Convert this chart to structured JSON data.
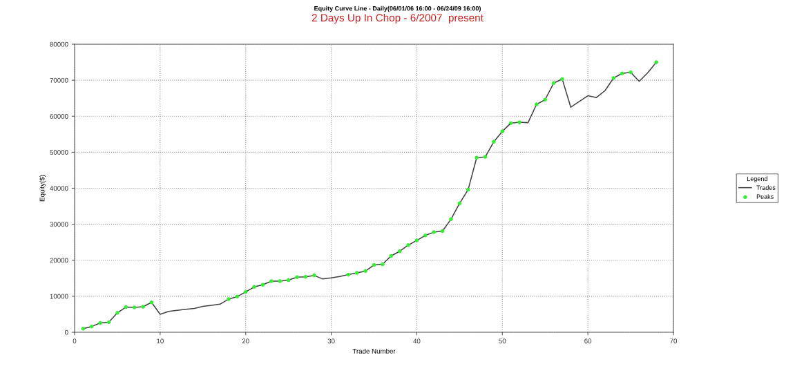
{
  "chart_data": {
    "type": "line",
    "title": "Equity Curve Line - Daily(06/01/06 16:00 - 06/24/09 16:00)",
    "subtitle": "2 Days Up In Chop - 6/2007  present",
    "xlabel": "Trade Number",
    "ylabel": "Equity($)",
    "legend_title": "Legend",
    "x": [
      1,
      2,
      3,
      4,
      5,
      6,
      7,
      8,
      9,
      10,
      11,
      12,
      13,
      14,
      15,
      16,
      17,
      18,
      19,
      20,
      21,
      22,
      23,
      24,
      25,
      26,
      27,
      28,
      29,
      30,
      31,
      32,
      33,
      34,
      35,
      36,
      37,
      38,
      39,
      40,
      41,
      42,
      43,
      44,
      45,
      46,
      47,
      48,
      49,
      50,
      51,
      52,
      53,
      54,
      55,
      56,
      57,
      58,
      59,
      60,
      61,
      62,
      63,
      64,
      65,
      66,
      67,
      68
    ],
    "series": [
      {
        "name": "Trades",
        "color": "#404040",
        "marker": "none",
        "line_style": "solid",
        "values": [
          1000,
          1600,
          2600,
          2800,
          5400,
          7000,
          6900,
          7100,
          8300,
          5000,
          5800,
          6100,
          6400,
          6600,
          7200,
          7500,
          7800,
          9200,
          9900,
          11200,
          12600,
          13200,
          14200,
          14200,
          14500,
          15300,
          15400,
          15800,
          14800,
          15100,
          15500,
          16000,
          16500,
          17000,
          18700,
          18900,
          21200,
          22500,
          24200,
          25500,
          26900,
          27800,
          28100,
          31400,
          35800,
          39600,
          48500,
          48700,
          52900,
          55800,
          58100,
          58300,
          58200,
          63300,
          64600,
          69200,
          70300,
          62500,
          64100,
          65700,
          65200,
          67100,
          70600,
          71900,
          72200,
          69700,
          72100,
          75000
        ]
      },
      {
        "name": "Peaks",
        "type": "scatter",
        "color": "#33ee33",
        "marker": "circle",
        "values": [
          1000,
          1600,
          2600,
          2800,
          5400,
          7000,
          6900,
          7100,
          8300,
          null,
          null,
          null,
          null,
          null,
          null,
          null,
          null,
          9200,
          9900,
          11200,
          12600,
          13200,
          14200,
          14200,
          14500,
          15300,
          15400,
          15800,
          null,
          null,
          null,
          16000,
          16500,
          17000,
          18700,
          18900,
          21200,
          22500,
          24200,
          25500,
          26900,
          27800,
          28100,
          31400,
          35800,
          39600,
          48500,
          48700,
          52900,
          55800,
          58100,
          58300,
          null,
          63300,
          64600,
          69200,
          70300,
          null,
          null,
          null,
          null,
          null,
          70600,
          71900,
          72200,
          null,
          null,
          75000
        ]
      }
    ],
    "xlim": [
      0,
      70
    ],
    "xticks": [
      0,
      10,
      20,
      30,
      40,
      50,
      60,
      70
    ],
    "ylim": [
      0,
      80000
    ],
    "yticks": [
      0,
      10000,
      20000,
      30000,
      40000,
      50000,
      60000,
      70000,
      80000
    ],
    "grid": true,
    "legend": "right"
  }
}
